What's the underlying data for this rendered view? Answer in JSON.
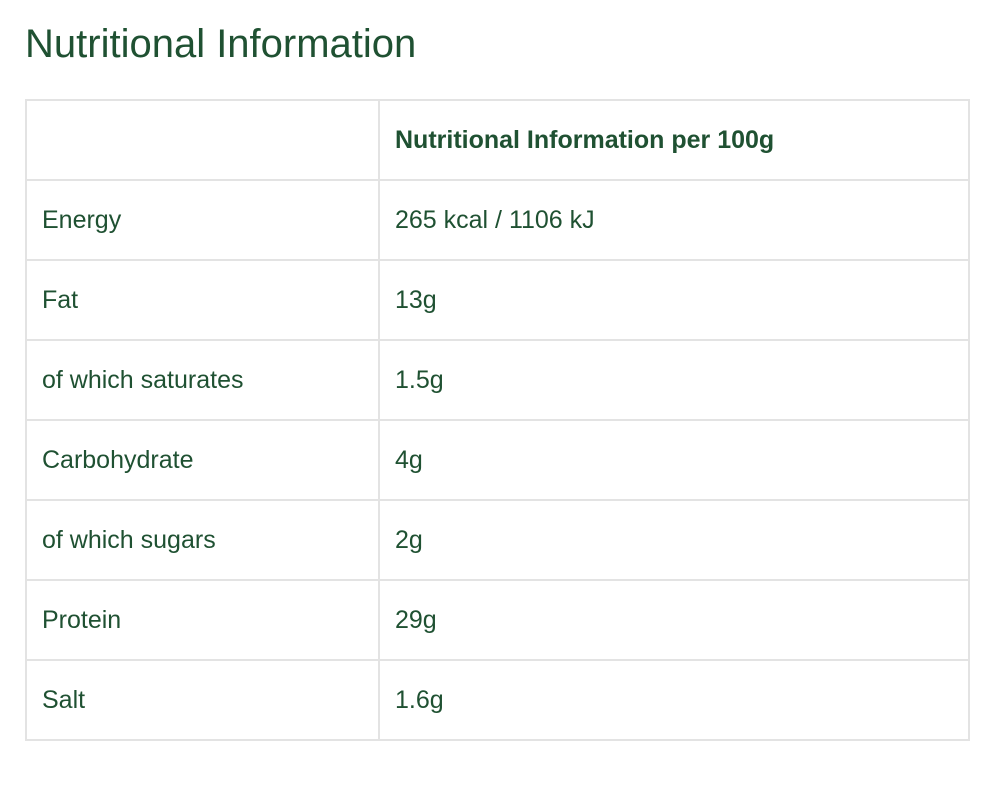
{
  "page": {
    "title": "Nutritional Information"
  },
  "table": {
    "header": {
      "label": "",
      "value": "Nutritional Information per 100g"
    },
    "rows": [
      {
        "label": "Energy",
        "value": "265 kcal / 1106 kJ"
      },
      {
        "label": "Fat",
        "value": "13g"
      },
      {
        "label": "of which saturates",
        "value": "1.5g"
      },
      {
        "label": "Carbohydrate",
        "value": "4g"
      },
      {
        "label": "of which sugars",
        "value": "2g"
      },
      {
        "label": "Protein",
        "value": "29g"
      },
      {
        "label": "Salt",
        "value": "1.6g"
      }
    ]
  },
  "colors": {
    "text": "#1f5132",
    "border": "#e3e3e3",
    "background": "#ffffff"
  }
}
